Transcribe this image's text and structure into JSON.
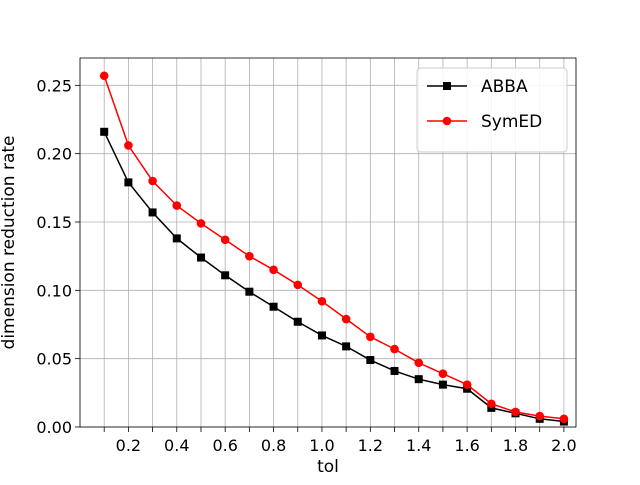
{
  "chart_data": {
    "type": "line",
    "xlabel": "tol",
    "ylabel": "dimension reduction rate",
    "xlim": [
      0.0,
      2.05
    ],
    "ylim": [
      0.0,
      0.27
    ],
    "grid": true,
    "legend_position": "top-right",
    "x_tick_labels": [
      "0.2",
      "0.4",
      "0.6",
      "0.8",
      "1.0",
      "1.2",
      "1.4",
      "1.6",
      "1.8",
      "2.0"
    ],
    "y_tick_labels": [
      "0.00",
      "0.05",
      "0.10",
      "0.15",
      "0.20",
      "0.25"
    ],
    "x": [
      0.1,
      0.2,
      0.3,
      0.4,
      0.5,
      0.6,
      0.7,
      0.8,
      0.9,
      1.0,
      1.1,
      1.2,
      1.3,
      1.4,
      1.5,
      1.6,
      1.7,
      1.8,
      1.9,
      2.0
    ],
    "series": [
      {
        "name": "ABBA",
        "color": "#000000",
        "marker": "square",
        "values": [
          0.216,
          0.179,
          0.157,
          0.138,
          0.124,
          0.111,
          0.099,
          0.088,
          0.077,
          0.067,
          0.059,
          0.049,
          0.041,
          0.035,
          0.031,
          0.028,
          0.014,
          0.01,
          0.006,
          0.004
        ]
      },
      {
        "name": "SymED",
        "color": "#ff0000",
        "marker": "circle",
        "values": [
          0.257,
          0.206,
          0.18,
          0.162,
          0.149,
          0.137,
          0.125,
          0.115,
          0.104,
          0.092,
          0.079,
          0.066,
          0.057,
          0.047,
          0.039,
          0.031,
          0.017,
          0.011,
          0.008,
          0.006
        ]
      }
    ]
  }
}
